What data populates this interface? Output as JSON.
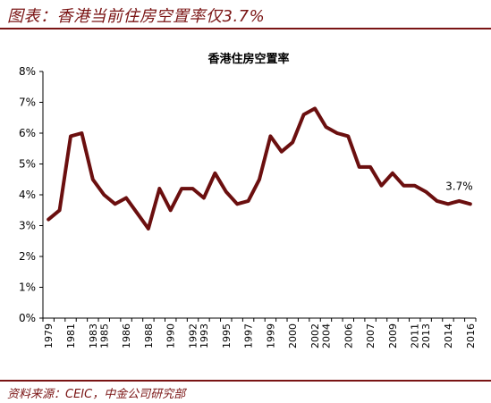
{
  "figure": {
    "title": "图表：香港当前住房空置率仅3.7%",
    "source": "资料来源：CEIC，中金公司研究部"
  },
  "colors": {
    "accent": "#7a1414",
    "line": "#6b0f0f"
  },
  "chart_data": {
    "type": "line",
    "title": "香港住房空置率",
    "xlabel": "",
    "ylabel": "",
    "ylim": [
      0,
      8
    ],
    "yticks": [
      "0%",
      "1%",
      "2%",
      "3%",
      "4%",
      "5%",
      "6%",
      "7%",
      "8%"
    ],
    "x_tick_labels": [
      "1979",
      "1981",
      "1983",
      "1985",
      "1986",
      "1988",
      "1990",
      "1992",
      "1993",
      "1995",
      "1997",
      "1999",
      "2000",
      "2002",
      "2004",
      "2006",
      "2007",
      "2009",
      "2011",
      "2013",
      "2014",
      "2016"
    ],
    "grid": false,
    "legend": "none",
    "series": [
      {
        "values": [
          3.2,
          3.5,
          5.9,
          6.0,
          4.5,
          4.0,
          3.7,
          3.9,
          3.4,
          2.9,
          4.2,
          3.5,
          4.2,
          4.2,
          3.9,
          4.7,
          4.1,
          3.7,
          3.8,
          4.5,
          5.9,
          5.4,
          5.7,
          6.6,
          6.8,
          6.2,
          6.0,
          5.9,
          4.9,
          4.9,
          4.3,
          4.7,
          4.3,
          4.3,
          4.1,
          3.8,
          3.7,
          3.8,
          3.7
        ]
      }
    ],
    "annotation": {
      "text": "3.7%"
    }
  }
}
